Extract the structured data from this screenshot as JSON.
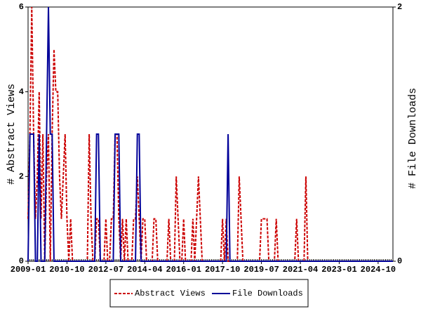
{
  "chart_data": {
    "type": "line",
    "x": [
      "2009-01",
      "2009-02",
      "2009-03",
      "2009-04",
      "2009-05",
      "2009-06",
      "2009-07",
      "2009-08",
      "2009-09",
      "2009-10",
      "2009-11",
      "2009-12",
      "2010-01",
      "2010-02",
      "2010-03",
      "2010-04",
      "2010-05",
      "2010-06",
      "2010-07",
      "2010-08",
      "2010-09",
      "2010-10",
      "2010-11",
      "2010-12",
      "2011-01",
      "2011-02",
      "2011-03",
      "2011-04",
      "2011-05",
      "2011-06",
      "2011-07",
      "2011-08",
      "2011-09",
      "2011-10",
      "2011-11",
      "2011-12",
      "2012-01",
      "2012-02",
      "2012-03",
      "2012-04",
      "2012-05",
      "2012-06",
      "2012-07",
      "2012-08",
      "2012-09",
      "2012-10",
      "2012-11",
      "2012-12",
      "2013-01",
      "2013-02",
      "2013-03",
      "2013-04",
      "2013-05",
      "2013-06",
      "2013-07",
      "2013-08",
      "2013-09",
      "2013-10",
      "2013-11",
      "2013-12",
      "2014-01",
      "2014-02",
      "2014-03",
      "2014-04",
      "2014-05",
      "2014-06",
      "2014-07",
      "2014-08",
      "2014-09",
      "2014-10",
      "2014-11",
      "2014-12",
      "2015-01",
      "2015-02",
      "2015-03",
      "2015-04",
      "2015-05",
      "2015-06",
      "2015-07",
      "2015-08",
      "2015-09",
      "2015-10",
      "2015-11",
      "2015-12",
      "2016-01",
      "2016-02",
      "2016-03",
      "2016-04",
      "2016-05",
      "2016-06",
      "2016-07",
      "2016-08",
      "2016-09",
      "2016-10",
      "2016-11",
      "2016-12",
      "2017-01",
      "2017-02",
      "2017-03",
      "2017-04",
      "2017-05",
      "2017-06",
      "2017-07",
      "2017-08",
      "2017-09",
      "2017-10",
      "2017-11",
      "2017-12",
      "2018-01",
      "2018-02",
      "2018-03",
      "2018-04",
      "2018-05",
      "2018-06",
      "2018-07",
      "2018-08",
      "2018-09",
      "2018-10",
      "2018-11",
      "2018-12",
      "2019-01",
      "2019-02",
      "2019-03",
      "2019-04",
      "2019-05",
      "2019-06",
      "2019-07",
      "2019-08",
      "2019-09",
      "2019-10",
      "2019-11",
      "2019-12",
      "2020-01",
      "2020-02",
      "2020-03",
      "2020-04",
      "2020-05",
      "2020-06",
      "2020-07",
      "2020-08",
      "2020-09",
      "2020-10",
      "2020-11",
      "2020-12",
      "2021-01",
      "2021-02",
      "2021-03",
      "2021-04",
      "2021-05",
      "2021-06",
      "2021-07",
      "2021-08",
      "2021-09",
      "2021-10",
      "2021-11",
      "2021-12",
      "2022-01",
      "2022-02",
      "2022-03",
      "2022-04",
      "2022-05",
      "2022-06",
      "2022-07",
      "2022-08",
      "2022-09",
      "2022-10",
      "2022-11",
      "2022-12",
      "2023-01",
      "2023-02",
      "2023-03",
      "2023-04",
      "2023-05",
      "2023-06",
      "2023-07",
      "2023-08",
      "2023-09",
      "2023-10",
      "2023-11",
      "2023-12",
      "2024-01",
      "2024-02",
      "2024-03",
      "2024-04",
      "2024-05",
      "2024-06",
      "2024-07",
      "2024-08",
      "2024-09",
      "2024-10",
      "2024-11",
      "2024-12",
      "2025-01",
      "2025-02",
      "2025-03",
      "2025-04",
      "2025-05",
      "2025-06"
    ],
    "series": [
      {
        "name": "Abstract Views",
        "color": "#cc0000",
        "dash": true,
        "values": [
          1,
          3,
          6,
          3,
          1,
          2,
          4,
          1,
          3,
          0,
          2,
          3,
          0,
          3,
          5,
          4,
          4,
          2,
          1,
          2,
          3,
          1,
          0,
          1,
          0,
          0,
          0,
          0,
          0,
          0,
          0,
          0,
          0,
          3,
          1,
          0,
          0,
          1,
          1,
          0,
          0,
          0,
          1,
          0,
          0,
          1,
          1,
          3,
          3,
          1,
          0,
          1,
          0,
          1,
          0,
          0,
          0,
          1,
          1,
          2,
          1,
          0,
          1,
          1,
          0,
          0,
          0,
          0,
          1,
          1,
          0,
          0,
          0,
          0,
          0,
          0,
          1,
          0,
          0,
          0,
          2,
          1,
          0,
          0,
          1,
          0,
          0,
          0,
          0,
          1,
          0,
          1,
          2,
          1,
          0,
          0,
          0,
          0,
          0,
          0,
          0,
          0,
          0,
          0,
          0,
          1,
          0,
          1,
          0,
          0,
          0,
          0,
          0,
          0,
          2,
          1,
          0,
          0,
          0,
          0,
          0,
          0,
          0,
          0,
          0,
          0,
          1,
          1,
          1,
          1,
          0,
          0,
          0,
          0,
          1,
          0,
          0,
          0,
          0,
          0,
          0,
          0,
          0,
          0,
          0,
          1,
          0,
          0,
          0,
          0,
          2,
          0,
          0,
          0,
          0,
          0,
          0,
          0,
          0,
          0,
          0,
          0,
          0,
          0,
          0,
          0,
          0,
          0,
          0,
          0,
          0,
          0,
          0,
          0,
          0,
          0,
          0,
          0,
          0,
          0,
          0,
          0,
          0,
          0,
          0,
          0,
          0,
          0,
          0,
          0,
          0,
          0,
          0,
          0,
          0,
          0,
          0,
          0
        ]
      },
      {
        "name": "File Downloads",
        "color": "#000099",
        "axis": "y2",
        "values": [
          0,
          1,
          1,
          1,
          0,
          0,
          1,
          0,
          0,
          0,
          1,
          2,
          1,
          1,
          0,
          0,
          0,
          0,
          0,
          0,
          0,
          0,
          0,
          0,
          0,
          0,
          0,
          0,
          0,
          0,
          0,
          0,
          0,
          0,
          0,
          0,
          0,
          1,
          1,
          0,
          0,
          0,
          0,
          0,
          0,
          0,
          0,
          1,
          1,
          1,
          0,
          0,
          0,
          0,
          0,
          0,
          0,
          0,
          0,
          1,
          1,
          0,
          0,
          0,
          0,
          0,
          0,
          0,
          0,
          0,
          0,
          0,
          0,
          0,
          0,
          0,
          0,
          0,
          0,
          0,
          0,
          0,
          0,
          0,
          0,
          0,
          0,
          0,
          0,
          0,
          0,
          0,
          0,
          0,
          0,
          0,
          0,
          0,
          0,
          0,
          0,
          0,
          0,
          0,
          0,
          0,
          0,
          0,
          1,
          0,
          0,
          0,
          0,
          0,
          0,
          0,
          0,
          0,
          0,
          0,
          0,
          0,
          0,
          0,
          0,
          0,
          0,
          0,
          0,
          0,
          0,
          0,
          0,
          0,
          0,
          0,
          0,
          0,
          0,
          0,
          0,
          0,
          0,
          0,
          0,
          0,
          0,
          0,
          0,
          0,
          0,
          0,
          0,
          0,
          0,
          0,
          0,
          0,
          0,
          0,
          0,
          0,
          0,
          0,
          0,
          0,
          0,
          0,
          0,
          0,
          0,
          0,
          0,
          0,
          0,
          0,
          0,
          0,
          0,
          0,
          0,
          0,
          0,
          0,
          0,
          0,
          0,
          0,
          0,
          0,
          0,
          0,
          0,
          0,
          0,
          0,
          0,
          0
        ]
      }
    ],
    "xlim": [
      "2009-01",
      "2025-06"
    ],
    "xticks": [
      "2009-01",
      "2010-10",
      "2012-07",
      "2014-04",
      "2016-01",
      "2017-10",
      "2019-07",
      "2021-04",
      "2023-01",
      "2024-10"
    ],
    "ylim": [
      0,
      6
    ],
    "yticks": [
      0,
      2,
      4,
      6
    ],
    "y2lim": [
      0,
      2
    ],
    "y2ticks": [
      0,
      2
    ],
    "ylabel": "# Abstract Views",
    "y2label": "# File Downloads",
    "legend": "bottom"
  }
}
